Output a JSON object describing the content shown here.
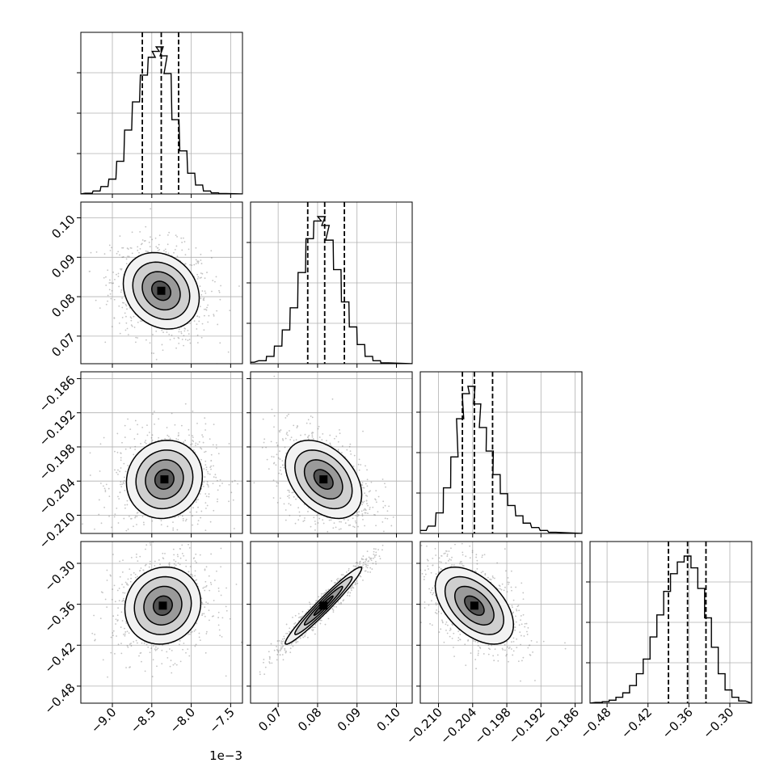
{
  "chart_data": {
    "type": "corner",
    "params": [
      {
        "range": [
          -9.4,
          -7.35
        ],
        "ticks": [
          -9.0,
          -8.5,
          -8.0,
          -7.5
        ],
        "tick_labels": [
          "−9.0",
          "−8.5",
          "−8.0",
          "−7.5"
        ],
        "offset_label": "1e−3",
        "quantiles": [
          -8.62,
          -8.38,
          -8.16
        ],
        "hist_bins": [
          -9.3,
          -9.2,
          -9.1,
          -9.0,
          -8.9,
          -8.8,
          -8.7,
          -8.6,
          -8.5,
          -8.45,
          -8.4,
          -8.35,
          -8.3,
          -8.2,
          -8.1,
          -8.0,
          -7.9,
          -7.8,
          -7.7,
          -7.6
        ],
        "hist_counts": [
          0.005,
          0.02,
          0.05,
          0.1,
          0.22,
          0.43,
          0.62,
          0.8,
          0.92,
          0.96,
          0.99,
          0.93,
          0.81,
          0.5,
          0.29,
          0.14,
          0.06,
          0.02,
          0.008,
          0.003
        ]
      },
      {
        "range": [
          0.063,
          0.104
        ],
        "ticks": [
          0.07,
          0.08,
          0.09,
          0.1
        ],
        "tick_labels": [
          "0.07",
          "0.08",
          "0.09",
          "0.10"
        ],
        "quantiles": [
          0.0775,
          0.0818,
          0.0868
        ],
        "hist_bins": [
          0.063,
          0.066,
          0.068,
          0.07,
          0.072,
          0.074,
          0.076,
          0.078,
          0.08,
          0.081,
          0.082,
          0.083,
          0.085,
          0.087,
          0.089,
          0.091,
          0.093,
          0.095,
          0.097
        ],
        "hist_counts": [
          0.01,
          0.02,
          0.05,
          0.12,
          0.23,
          0.38,
          0.62,
          0.85,
          0.97,
          1.0,
          0.94,
          0.84,
          0.64,
          0.42,
          0.25,
          0.13,
          0.05,
          0.02,
          0.006
        ]
      },
      {
        "range": [
          -0.2132,
          -0.1848
        ],
        "ticks": [
          -0.21,
          -0.204,
          -0.198,
          -0.192,
          -0.186
        ],
        "tick_labels": [
          "−0.210",
          "−0.204",
          "−0.198",
          "−0.192",
          "−0.186"
        ],
        "quantiles": [
          -0.2058,
          -0.2037,
          -0.2005
        ],
        "hist_bins": [
          -0.2128,
          -0.2112,
          -0.2098,
          -0.2085,
          -0.2072,
          -0.2062,
          -0.2052,
          -0.2042,
          -0.2032,
          -0.2022,
          -0.201,
          -0.1998,
          -0.1985,
          -0.1972,
          -0.1958,
          -0.1945,
          -0.193,
          -0.1915,
          -0.19
        ],
        "hist_counts": [
          0.02,
          0.05,
          0.14,
          0.31,
          0.52,
          0.78,
          0.95,
          1.0,
          0.88,
          0.72,
          0.56,
          0.4,
          0.27,
          0.19,
          0.12,
          0.07,
          0.04,
          0.02,
          0.008
        ]
      },
      {
        "range": [
          -0.505,
          -0.268
        ],
        "ticks": [
          -0.48,
          -0.42,
          -0.36,
          -0.3
        ],
        "tick_labels": [
          "−0.48",
          "−0.42",
          "−0.36",
          "−0.30"
        ],
        "quantiles": [
          -0.39,
          -0.362,
          -0.335
        ],
        "hist_bins": [
          -0.492,
          -0.482,
          -0.472,
          -0.462,
          -0.452,
          -0.442,
          -0.432,
          -0.422,
          -0.412,
          -0.402,
          -0.392,
          -0.382,
          -0.372,
          -0.362,
          -0.352,
          -0.342,
          -0.332,
          -0.322,
          -0.312,
          -0.302,
          -0.292,
          -0.282
        ],
        "hist_counts": [
          0.005,
          0.01,
          0.02,
          0.04,
          0.07,
          0.12,
          0.2,
          0.3,
          0.45,
          0.6,
          0.76,
          0.88,
          0.96,
          1.0,
          0.92,
          0.78,
          0.58,
          0.38,
          0.2,
          0.09,
          0.04,
          0.015
        ]
      }
    ],
    "pairs": [
      {
        "row": 1,
        "col": 0,
        "mean": [
          -8.38,
          0.0815
        ],
        "cov": [
          [
            0.058,
            -0.00022
          ],
          [
            -0.00022,
            2.35e-05
          ]
        ]
      },
      {
        "row": 2,
        "col": 0,
        "mean": [
          -8.34,
          -0.2037
        ],
        "cov": [
          [
            0.058,
            6.4e-05
          ],
          [
            6.4e-05,
            1.18e-05
          ]
        ]
      },
      {
        "row": 2,
        "col": 1,
        "mean": [
          0.0815,
          -0.2037
        ],
        "cov": [
          [
            2.35e-05,
            -6.5e-06
          ],
          [
            -6.5e-06,
            1.18e-05
          ]
        ]
      },
      {
        "row": 3,
        "col": 0,
        "mean": [
          -8.36,
          -0.362
        ],
        "cov": [
          [
            0.058,
            0.00055
          ],
          [
            0.00055,
            0.0008
          ]
        ]
      },
      {
        "row": 3,
        "col": 1,
        "mean": [
          0.0815,
          -0.362
        ],
        "cov": [
          [
            2.35e-05,
            0.000133
          ],
          [
            0.000133,
            0.0008
          ]
        ]
      },
      {
        "row": 3,
        "col": 2,
        "mean": [
          -0.2037,
          -0.362
        ],
        "cov": [
          [
            1.18e-05,
            -4.85e-05
          ],
          [
            -4.85e-05,
            0.0008
          ]
        ]
      }
    ],
    "contour_levels_sigma": [
      0.5,
      1.0,
      1.5,
      2.0
    ],
    "grid": true
  }
}
